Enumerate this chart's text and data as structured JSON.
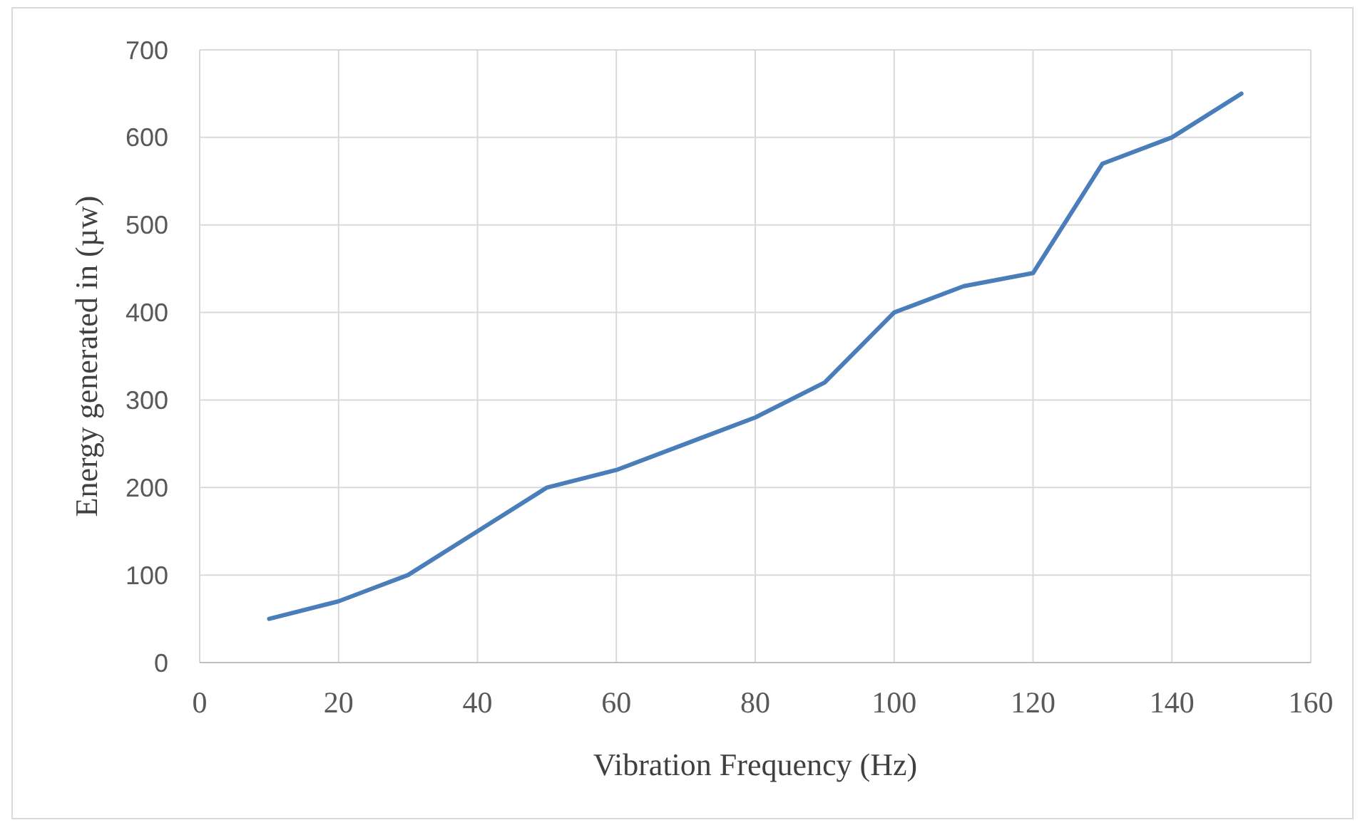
{
  "chart_data": {
    "type": "line",
    "xlabel": "Vibration Frequency (Hz)",
    "ylabel": "Energy generated in (µw)",
    "x": [
      10,
      20,
      30,
      40,
      50,
      60,
      70,
      80,
      90,
      100,
      110,
      120,
      130,
      140,
      150
    ],
    "series": [
      {
        "color": "#4a7ebb",
        "values": [
          50,
          70,
          100,
          150,
          200,
          220,
          250,
          280,
          320,
          400,
          430,
          445,
          570,
          600,
          650
        ]
      }
    ],
    "xlim": [
      0,
      160
    ],
    "xticks": [
      0,
      20,
      40,
      60,
      80,
      100,
      120,
      140,
      160
    ],
    "ylim": [
      0,
      700
    ],
    "yticks": [
      0,
      100,
      200,
      300,
      400,
      500,
      600,
      700
    ],
    "grid": true,
    "marker": "none",
    "line_style": "solid"
  }
}
